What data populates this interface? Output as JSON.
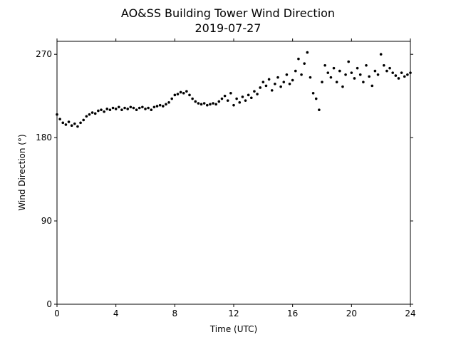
{
  "chart_data": {
    "type": "scatter",
    "title": "AO&SS Building Tower Wind Direction",
    "subtitle": "2019-07-27",
    "x_label": "Time (UTC)",
    "y_label": "Wind Direction (°)",
    "color": "#000000",
    "xlim": [
      0,
      24
    ],
    "xticks": [
      0,
      4,
      8,
      12,
      16,
      20,
      24
    ],
    "ylim": [
      0,
      284
    ],
    "yticks": [
      0,
      90,
      180,
      270
    ],
    "x": [
      0,
      0.2,
      0.4,
      0.6,
      0.8,
      1,
      1.2,
      1.4,
      1.6,
      1.8,
      2,
      2.2,
      2.4,
      2.6,
      2.8,
      3,
      3.2,
      3.4,
      3.6,
      3.8,
      4,
      4.2,
      4.4,
      4.6,
      4.8,
      5,
      5.2,
      5.4,
      5.6,
      5.8,
      6,
      6.2,
      6.4,
      6.6,
      6.8,
      7,
      7.2,
      7.4,
      7.6,
      7.8,
      8,
      8.2,
      8.4,
      8.6,
      8.8,
      9,
      9.2,
      9.4,
      9.6,
      9.8,
      10,
      10.2,
      10.4,
      10.6,
      10.8,
      11,
      11.2,
      11.4,
      11.6,
      11.8,
      12,
      12.2,
      12.4,
      12.6,
      12.8,
      13,
      13.2,
      13.4,
      13.6,
      13.8,
      14,
      14.2,
      14.4,
      14.6,
      14.8,
      15,
      15.2,
      15.4,
      15.6,
      15.8,
      16,
      16.2,
      16.4,
      16.6,
      16.8,
      17,
      17.2,
      17.4,
      17.6,
      17.8,
      18,
      18.2,
      18.4,
      18.6,
      18.8,
      19,
      19.2,
      19.4,
      19.6,
      19.8,
      20,
      20.2,
      20.4,
      20.6,
      20.8,
      21,
      21.2,
      21.4,
      21.6,
      21.8,
      22,
      22.2,
      22.4,
      22.6,
      22.8,
      23,
      23.2,
      23.4,
      23.6,
      23.8,
      24
    ],
    "values": [
      205,
      200,
      196,
      194,
      197,
      193,
      195,
      192,
      196,
      199,
      203,
      205,
      207,
      206,
      209,
      210,
      208,
      211,
      210,
      212,
      211,
      213,
      210,
      212,
      211,
      213,
      212,
      210,
      212,
      213,
      211,
      212,
      210,
      213,
      214,
      215,
      214,
      216,
      218,
      222,
      226,
      227,
      229,
      228,
      230,
      226,
      222,
      219,
      217,
      216,
      217,
      215,
      216,
      217,
      216,
      219,
      222,
      225,
      220,
      228,
      215,
      222,
      218,
      224,
      220,
      226,
      223,
      230,
      227,
      234,
      240,
      236,
      243,
      231,
      238,
      245,
      235,
      240,
      248,
      238,
      242,
      252,
      265,
      248,
      260,
      272,
      245,
      228,
      222,
      210,
      240,
      258,
      250,
      245,
      255,
      240,
      252,
      235,
      248,
      262,
      250,
      244,
      255,
      248,
      240,
      258,
      246,
      236,
      252,
      248,
      270,
      258,
      252,
      255,
      250,
      247,
      244,
      250,
      246,
      248,
      250
    ]
  }
}
